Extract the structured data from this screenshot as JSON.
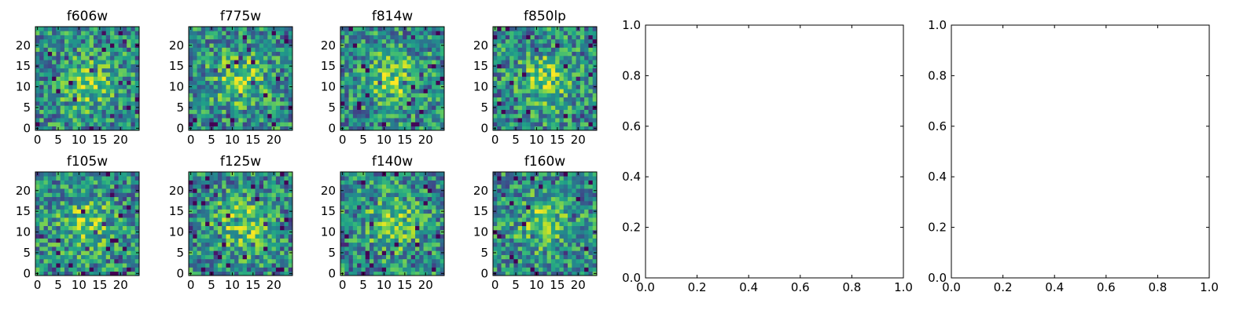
{
  "chart_data": [
    {
      "type": "heatmap",
      "title": "f606w",
      "x_ticks": [
        "0",
        "5",
        "10",
        "15",
        "20"
      ],
      "y_ticks": [
        "0",
        "5",
        "10",
        "15",
        "20"
      ],
      "xlim": [
        -0.5,
        24.5
      ],
      "ylim": [
        -0.5,
        24.5
      ],
      "grid_size": 25,
      "colormap": "viridis",
      "center": [
        12,
        11
      ],
      "values": []
    },
    {
      "type": "heatmap",
      "title": "f775w",
      "x_ticks": [
        "0",
        "5",
        "10",
        "15",
        "20"
      ],
      "y_ticks": [
        "0",
        "5",
        "10",
        "15",
        "20"
      ],
      "xlim": [
        -0.5,
        24.5
      ],
      "ylim": [
        -0.5,
        24.5
      ],
      "grid_size": 25,
      "colormap": "viridis",
      "center": [
        12,
        12
      ],
      "values": []
    },
    {
      "type": "heatmap",
      "title": "f814w",
      "x_ticks": [
        "0",
        "5",
        "10",
        "15",
        "20"
      ],
      "y_ticks": [
        "0",
        "5",
        "10",
        "15",
        "20"
      ],
      "xlim": [
        -0.5,
        24.5
      ],
      "ylim": [
        -0.5,
        24.5
      ],
      "grid_size": 25,
      "colormap": "viridis",
      "center": [
        12,
        12
      ],
      "values": []
    },
    {
      "type": "heatmap",
      "title": "f850lp",
      "x_ticks": [
        "0",
        "5",
        "10",
        "15",
        "20"
      ],
      "y_ticks": [
        "0",
        "5",
        "10",
        "15",
        "20"
      ],
      "xlim": [
        -0.5,
        24.5
      ],
      "ylim": [
        -0.5,
        24.5
      ],
      "grid_size": 25,
      "colormap": "viridis",
      "center": [
        12,
        12
      ],
      "values": []
    },
    {
      "type": "scatter",
      "title": "",
      "x_ticks": [
        "0.0",
        "0.2",
        "0.4",
        "0.6",
        "0.8",
        "1.0"
      ],
      "y_ticks": [
        "0.0",
        "0.2",
        "0.4",
        "0.6",
        "0.8",
        "1.0"
      ],
      "xlim": [
        0,
        1
      ],
      "ylim": [
        0,
        1
      ],
      "series": []
    },
    {
      "type": "scatter",
      "title": "",
      "x_ticks": [
        "0.0",
        "0.2",
        "0.4",
        "0.6",
        "0.8",
        "1.0"
      ],
      "y_ticks": [
        "0.0",
        "0.2",
        "0.4",
        "0.6",
        "0.8",
        "1.0"
      ],
      "xlim": [
        0,
        1
      ],
      "ylim": [
        0,
        1
      ],
      "series": []
    },
    {
      "type": "heatmap",
      "title": "f105w",
      "x_ticks": [
        "0",
        "5",
        "10",
        "15",
        "20"
      ],
      "y_ticks": [
        "0",
        "5",
        "10",
        "15",
        "20"
      ],
      "xlim": [
        -0.5,
        24.5
      ],
      "ylim": [
        -0.5,
        24.5
      ],
      "grid_size": 25,
      "colormap": "viridis",
      "center": [
        12,
        12
      ],
      "values": []
    },
    {
      "type": "heatmap",
      "title": "f125w",
      "x_ticks": [
        "0",
        "5",
        "10",
        "15",
        "20"
      ],
      "y_ticks": [
        "0",
        "5",
        "10",
        "15",
        "20"
      ],
      "xlim": [
        -0.5,
        24.5
      ],
      "ylim": [
        -0.5,
        24.5
      ],
      "grid_size": 25,
      "colormap": "viridis",
      "center": [
        12,
        12
      ],
      "values": []
    },
    {
      "type": "heatmap",
      "title": "f140w",
      "x_ticks": [
        "0",
        "5",
        "10",
        "15",
        "20"
      ],
      "y_ticks": [
        "0",
        "5",
        "10",
        "15",
        "20"
      ],
      "xlim": [
        -0.5,
        24.5
      ],
      "ylim": [
        -0.5,
        24.5
      ],
      "grid_size": 25,
      "colormap": "viridis",
      "center": [
        12,
        12
      ],
      "values": []
    },
    {
      "type": "heatmap",
      "title": "f160w",
      "x_ticks": [
        "0",
        "5",
        "10",
        "15",
        "20"
      ],
      "y_ticks": [
        "0",
        "5",
        "10",
        "15",
        "20"
      ],
      "xlim": [
        -0.5,
        24.5
      ],
      "ylim": [
        -0.5,
        24.5
      ],
      "grid_size": 25,
      "colormap": "viridis",
      "center": [
        12,
        12
      ],
      "values": []
    }
  ]
}
